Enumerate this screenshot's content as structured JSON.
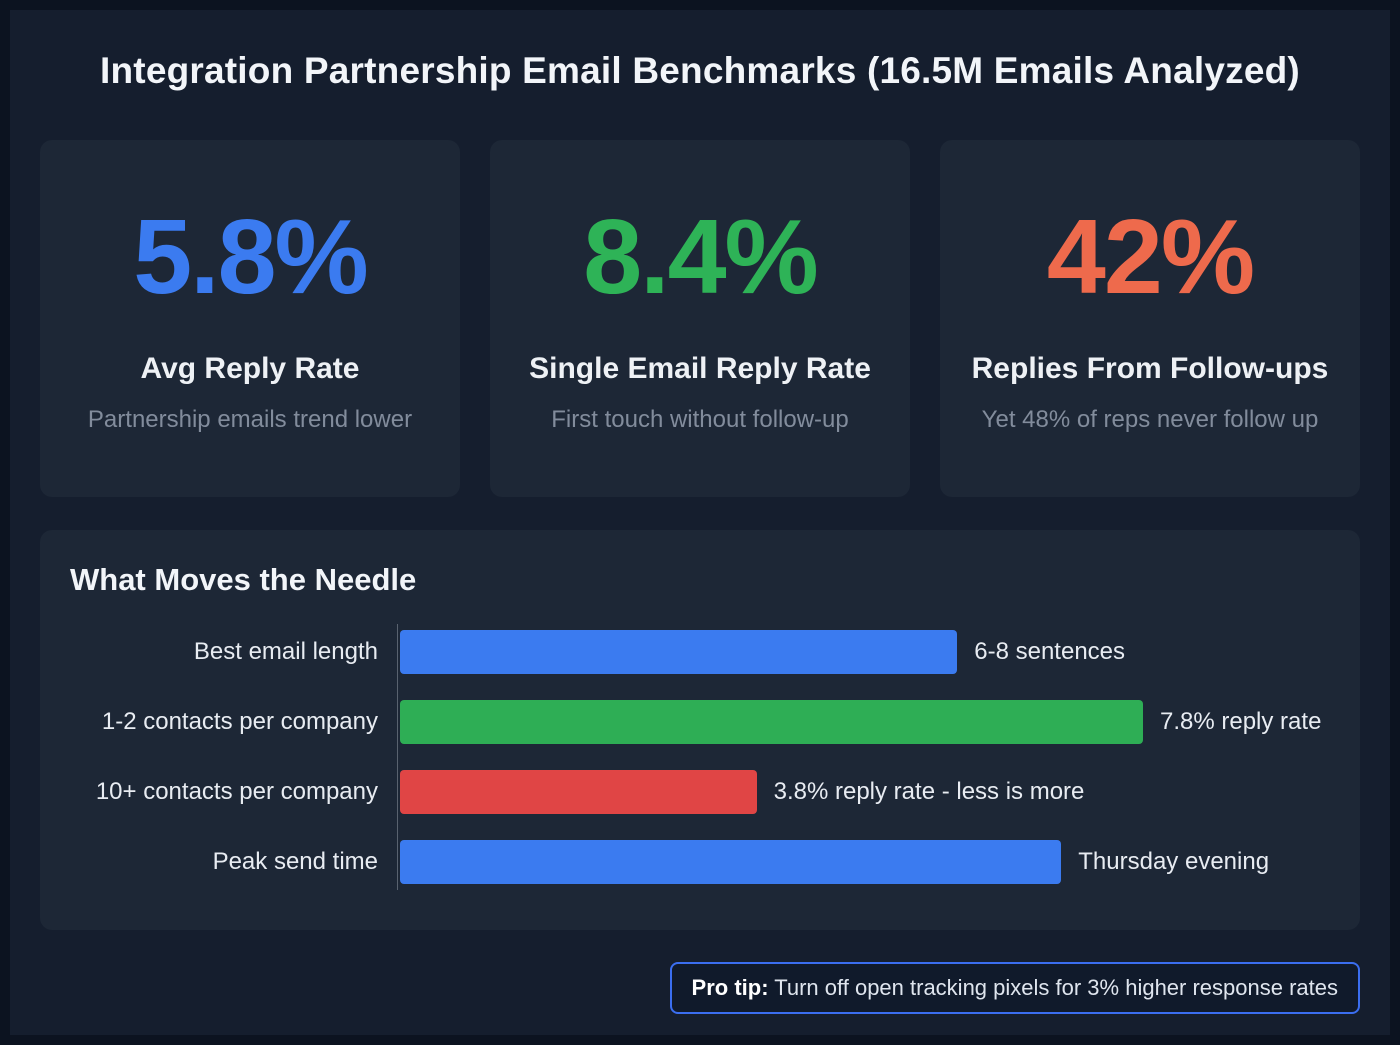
{
  "page": {
    "title": "Integration Partnership Email Benchmarks (16.5M Emails Analyzed)"
  },
  "stats": [
    {
      "value": "5.8%",
      "label": "Avg Reply Rate",
      "subtitle": "Partnership emails trend lower",
      "color": "#3b7bf0"
    },
    {
      "value": "8.4%",
      "label": "Single Email Reply Rate",
      "subtitle": "First touch without follow-up",
      "color": "#2eb357"
    },
    {
      "value": "42%",
      "label": "Replies From Follow-ups",
      "subtitle": "Yet 48% of reps never follow up",
      "color": "#ee6a4c"
    }
  ],
  "chart_data": {
    "type": "bar",
    "orientation": "horizontal",
    "title": "What Moves the Needle",
    "categories": [
      "Best email length",
      "1-2 contacts per company",
      "10+ contacts per company",
      "Peak send time"
    ],
    "value_labels": [
      "6-8 sentences",
      "7.8% reply rate",
      "3.8% reply rate - less is more",
      "Thursday evening"
    ],
    "bar_fractions": [
      0.75,
      1.0,
      0.48,
      0.89
    ],
    "bar_colors": [
      "#3b7bf0",
      "#2eae55",
      "#e04545",
      "#3b7bf0"
    ],
    "rows": [
      {
        "category": "Best email length",
        "value_label": "6-8 sentences",
        "fraction": 0.75,
        "color": "#3b7bf0"
      },
      {
        "category": "1-2 contacts per company",
        "value_label": "7.8% reply rate",
        "fraction": 1.0,
        "color": "#2eae55"
      },
      {
        "category": "10+ contacts per company",
        "value_label": "3.8% reply rate - less is more",
        "fraction": 0.48,
        "color": "#e04545"
      },
      {
        "category": "Peak send time",
        "value_label": "Thursday evening",
        "fraction": 0.89,
        "color": "#3b7bf0"
      }
    ],
    "legend": false,
    "grid": false
  },
  "pro_tip": {
    "label": "Pro tip:",
    "text": " Turn off open tracking pixels for 3% higher response rates",
    "border_color": "#3b6ef0"
  }
}
